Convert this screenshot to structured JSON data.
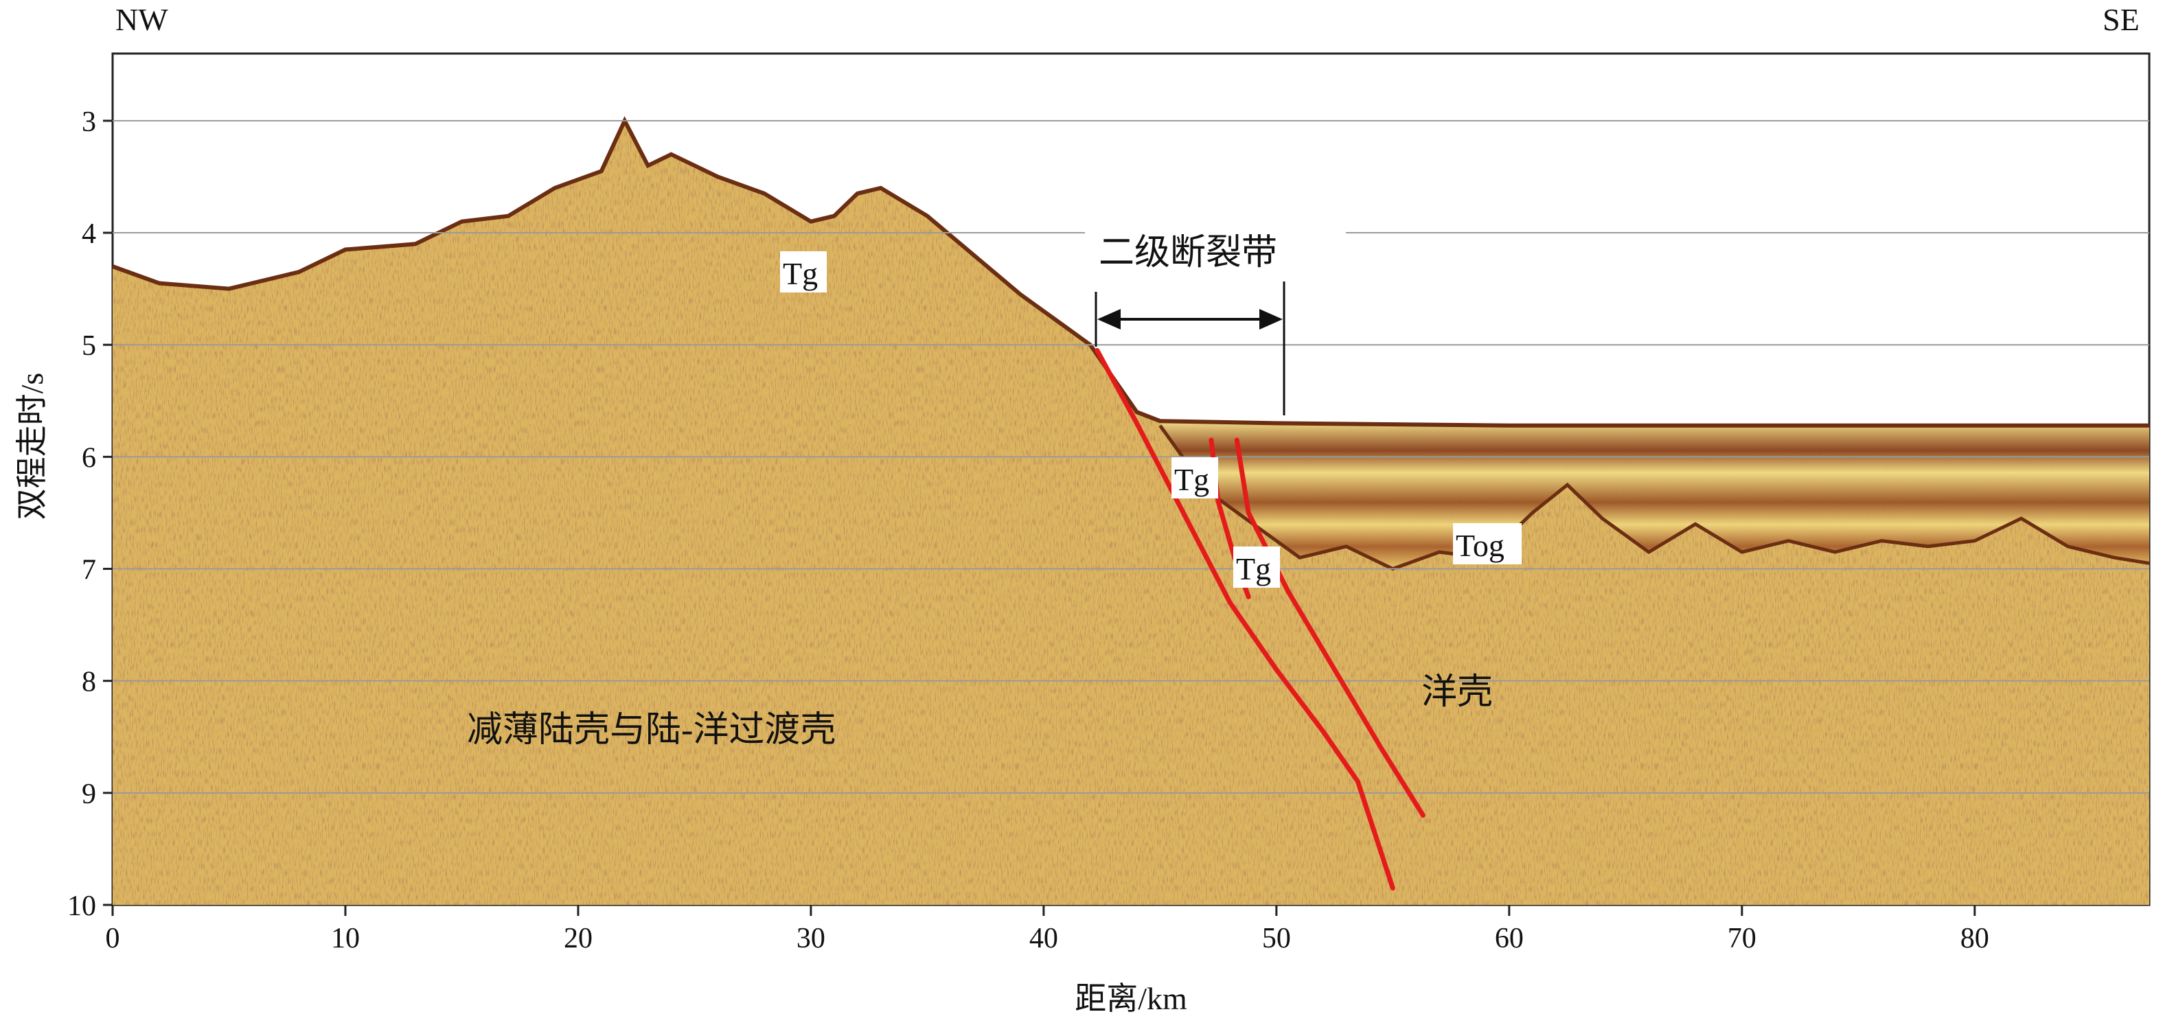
{
  "orientation": {
    "left": "NW",
    "right": "SE"
  },
  "axes": {
    "x": {
      "label": "距离/km",
      "ticks": [
        0,
        10,
        20,
        30,
        40,
        50,
        60,
        70,
        80
      ],
      "range": [
        0,
        87.5
      ]
    },
    "y": {
      "label": "双程走时/s",
      "ticks": [
        3,
        4,
        5,
        6,
        7,
        8,
        9,
        10
      ],
      "range": [
        2.4,
        10
      ],
      "inverted": true
    },
    "grid": "horizontal lines at each y tick"
  },
  "annotations": {
    "fault_zone": "二级断裂带",
    "tg_1": "Tg",
    "tg_2": "Tg",
    "tg_3": "Tg",
    "tog": "Tog",
    "crust_left": "减薄陆壳与陆-洋过渡壳",
    "crust_right": "洋壳"
  },
  "colors": {
    "seismic_base": "#dcb560",
    "seismic_dark": "#7a3c1c",
    "fault": "#e41b1b",
    "grid": "#9a9a9a"
  }
}
